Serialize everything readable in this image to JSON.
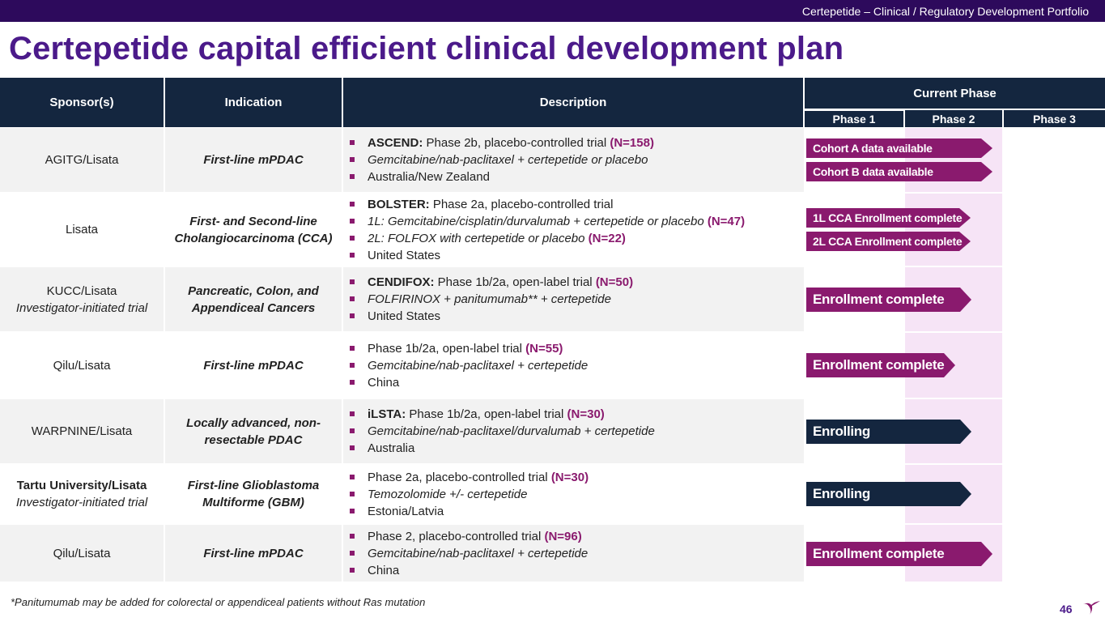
{
  "header": {
    "portfolio": "Certepetide – Clinical / Regulatory Development Portfolio"
  },
  "title": "Certepetide capital efficient clinical development plan",
  "table": {
    "col_sponsor": "Sponsor(s)",
    "col_indication": "Indication",
    "col_description": "Description",
    "col_current_phase": "Current Phase",
    "phase1": "Phase 1",
    "phase2": "Phase 2",
    "phase3": "Phase 3",
    "rows": [
      {
        "sponsor": "AGITG/Lisata",
        "sponsor_sub": "",
        "indication": "First-line mPDAC",
        "desc": [
          {
            "bold": "ASCEND:",
            "text": " Phase 2b, placebo-controlled trial ",
            "n": "(N=158)"
          },
          {
            "italic": "Gemcitabine/nab-paclitaxel + certepetide or placebo"
          },
          {
            "text": "Australia/New Zealand"
          }
        ],
        "status": [
          "Cohort A data available",
          "Cohort B data available"
        ]
      },
      {
        "sponsor": "Lisata",
        "sponsor_sub": "",
        "indication": "First- and Second-line Cholangiocarcinoma (CCA)",
        "desc": [
          {
            "bold": "BOLSTER:",
            "text": " Phase 2a, placebo-controlled trial"
          },
          {
            "italic": "1L: Gemcitabine/cisplatin/durvalumab + certepetide or placebo",
            "n": " (N=47)"
          },
          {
            "italic": "2L: FOLFOX with certepetide or placebo",
            "n": " (N=22)"
          },
          {
            "text": "United States"
          }
        ],
        "status": [
          "1L CCA Enrollment complete",
          "2L CCA Enrollment complete"
        ]
      },
      {
        "sponsor": "KUCC/Lisata",
        "sponsor_sub": "Investigator-initiated trial",
        "indication": "Pancreatic, Colon, and Appendiceal Cancers",
        "desc": [
          {
            "bold": "CENDIFOX:",
            "text": " Phase 1b/2a, open-label trial ",
            "n": "(N=50)"
          },
          {
            "italic": "FOLFIRINOX + panitumumab** + certepetide"
          },
          {
            "text": "United States"
          }
        ],
        "status": [
          "Enrollment complete"
        ]
      },
      {
        "sponsor": "Qilu/Lisata",
        "sponsor_sub": "",
        "indication": "First-line mPDAC",
        "desc": [
          {
            "text": "Phase 1b/2a, open-label trial ",
            "n": "(N=55)"
          },
          {
            "italic": "Gemcitabine/nab-paclitaxel + certepetide"
          },
          {
            "text": "China"
          }
        ],
        "status": [
          "Enrollment complete"
        ]
      },
      {
        "sponsor": "WARPNINE/Lisata",
        "sponsor_sub": "",
        "indication": "Locally advanced, non-resectable PDAC",
        "desc": [
          {
            "bold": "iLSTA:",
            "text": " Phase 1b/2a, open-label trial ",
            "n": "(N=30)"
          },
          {
            "italic": "Gemcitabine/nab-paclitaxel/durvalumab + certepetide"
          },
          {
            "text": "Australia"
          }
        ],
        "status": [
          "Enrolling"
        ]
      },
      {
        "sponsor": "Tartu University/Lisata",
        "sponsor_sub": "Investigator-initiated trial",
        "indication": "First-line Glioblastoma Multiforme (GBM)",
        "desc": [
          {
            "text": "Phase 2a, placebo-controlled trial ",
            "n": "(N=30)"
          },
          {
            "italic": "Temozolomide +/- certepetide"
          },
          {
            "text": "Estonia/Latvia"
          }
        ],
        "status": [
          "Enrolling"
        ]
      },
      {
        "sponsor": "Qilu/Lisata",
        "sponsor_sub": "",
        "indication": "First-line mPDAC",
        "desc": [
          {
            "text": "Phase 2, placebo-controlled trial ",
            "n": "(N=96)"
          },
          {
            "italic": "Gemcitabine/nab-paclitaxel + certepetide"
          },
          {
            "text": "China"
          }
        ],
        "status": [
          "Enrollment complete"
        ]
      }
    ]
  },
  "footnote": "*Panitumumab may be added for colorectal or appendiceal patients without Ras mutation",
  "page_number": "46",
  "colors": {
    "title": "#4b1a8a",
    "header_bg": "#14263f",
    "accent": "#8a1a6e",
    "phase2_bg": "#f6e4f6"
  }
}
